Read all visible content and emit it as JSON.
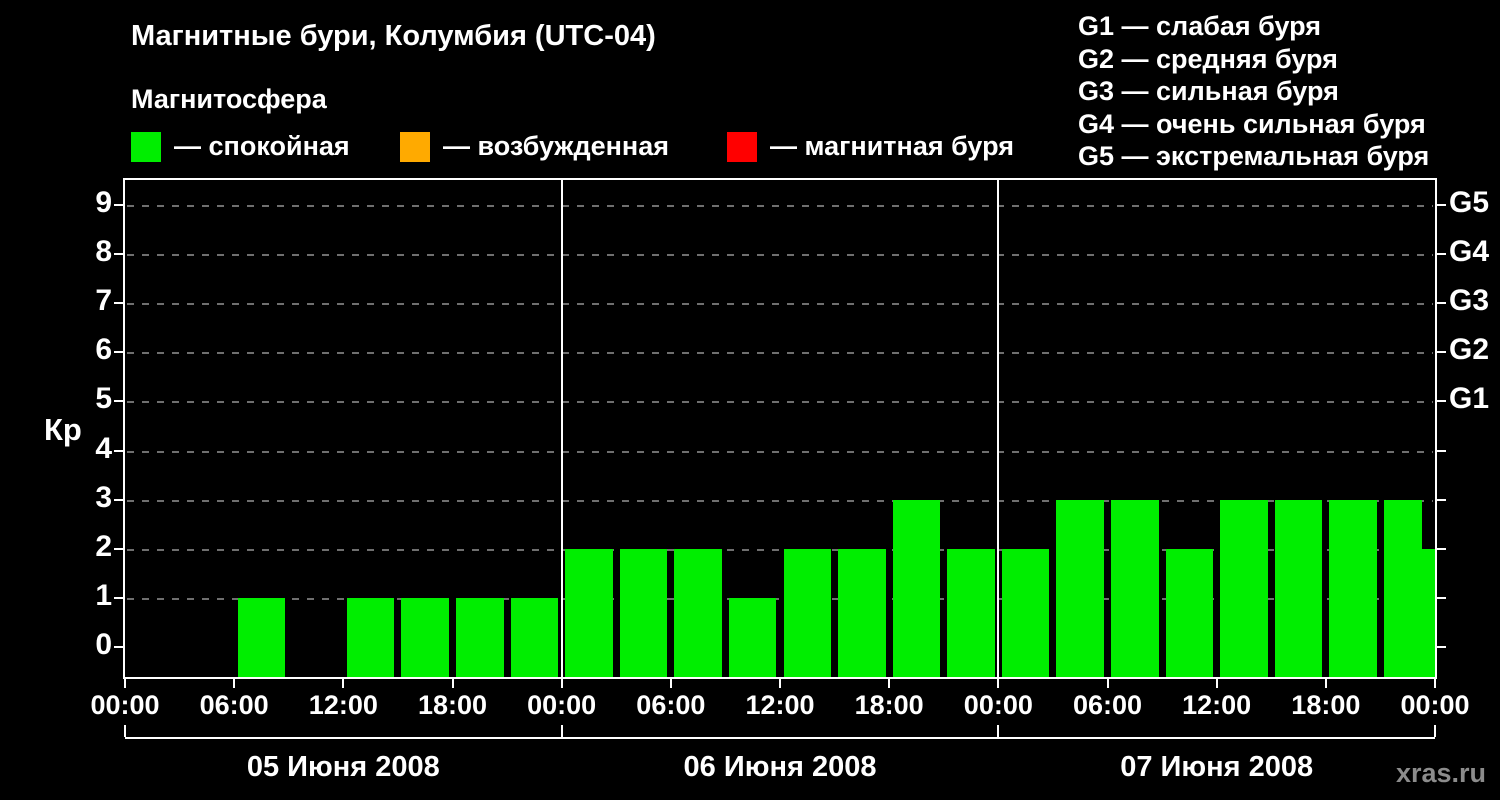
{
  "header": {
    "title": "Магнитные бури, Колумбия (UTC-04)",
    "subtitle": "Магнитосфера"
  },
  "legend": {
    "items": [
      {
        "label": "— спокойная",
        "color": "#00ee00"
      },
      {
        "label": "— возбужденная",
        "color": "#ffaa00"
      },
      {
        "label": "— магнитная буря",
        "color": "#ff0000"
      }
    ]
  },
  "storm_scale": {
    "items": [
      "G1 — слабая буря",
      "G2 — средняя буря",
      "G3 — сильная буря",
      "G4 — очень сильная буря",
      "G5 — экстремальная буря"
    ]
  },
  "chart_data": {
    "type": "bar",
    "title": "Магнитные бури, Колумбия (UTC-04)",
    "ylabel": "Кр",
    "ylim": [
      -0.6,
      9.5
    ],
    "grid": "horizontal dashed lines at Kp 1-9",
    "legend_position": "top",
    "bar_color": "#00ee00",
    "bar_interval_hours": 3,
    "yticks": [
      0,
      1,
      2,
      3,
      4,
      5,
      6,
      7,
      8,
      9
    ],
    "right_axis": [
      {
        "label": "G1",
        "value": 5
      },
      {
        "label": "G2",
        "value": 6
      },
      {
        "label": "G3",
        "value": 7
      },
      {
        "label": "G4",
        "value": 8
      },
      {
        "label": "G5",
        "value": 9
      }
    ],
    "x_time_labels": [
      "00:00",
      "06:00",
      "12:00",
      "18:00",
      "00:00",
      "06:00",
      "12:00",
      "18:00",
      "00:00",
      "06:00",
      "12:00",
      "18:00",
      "00:00"
    ],
    "days": [
      {
        "date": "05 Июня 2008",
        "kp_values": [
          0,
          0,
          1,
          0,
          1,
          1,
          1,
          1
        ]
      },
      {
        "date": "06 Июня 2008",
        "kp_values": [
          2,
          2,
          2,
          1,
          2,
          2,
          3,
          2
        ]
      },
      {
        "date": "07 Июня 2008",
        "kp_values": [
          2,
          3,
          3,
          2,
          3,
          3,
          3,
          3
        ]
      }
    ],
    "next_day_partial_value": 2
  },
  "watermark": "xras.ru"
}
